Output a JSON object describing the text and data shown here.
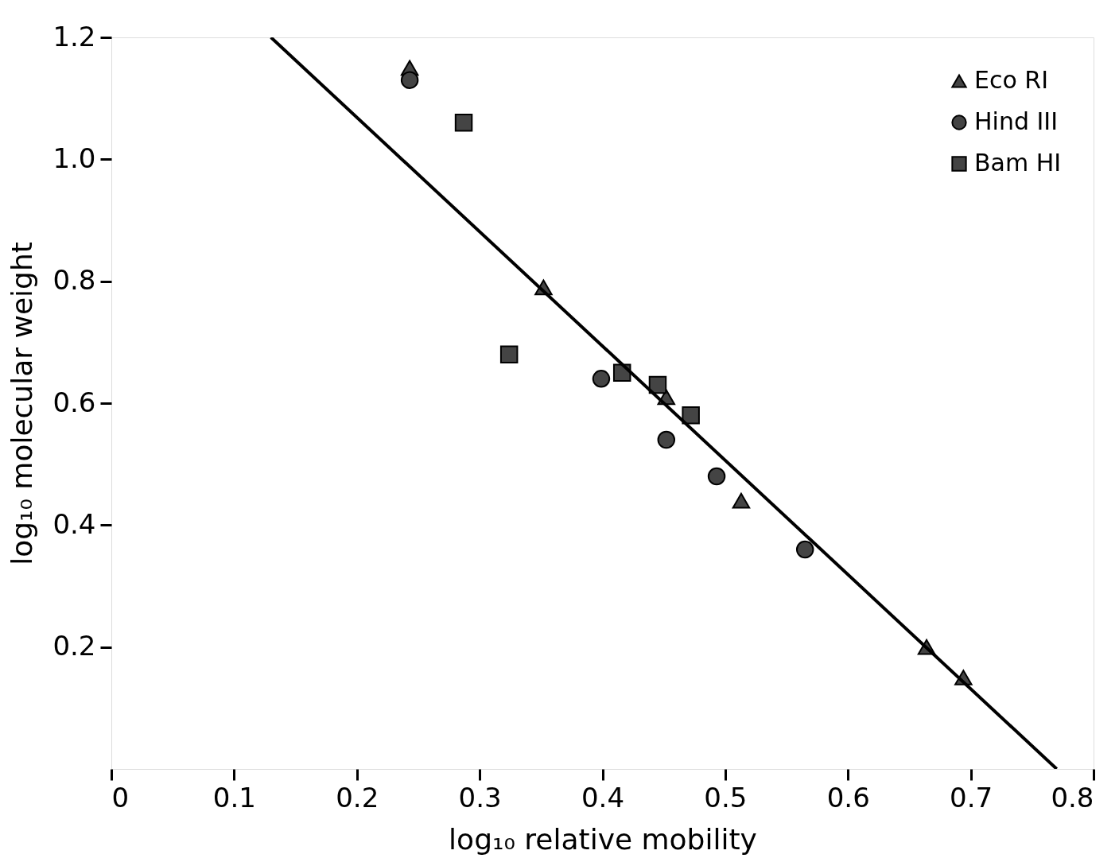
{
  "chart_data": {
    "type": "scatter",
    "xlabel": "log₁₀ relative mobility",
    "ylabel": "log₁₀ molecular weight",
    "xlim": [
      0,
      0.8
    ],
    "ylim": [
      0,
      1.2
    ],
    "xticks": [
      0,
      0.1,
      0.2,
      0.3,
      0.4,
      0.5,
      0.6,
      0.7,
      0.8
    ],
    "yticks": [
      0.2,
      0.4,
      0.6,
      0.8,
      {
        "value": 1.0,
        "label": "1.0"
      },
      1.2
    ],
    "grid": false,
    "legend": "top right",
    "series": [
      {
        "name": "Eco RI",
        "color": "#444444",
        "marker": "triangle",
        "x": [
          0.243,
          0.352,
          0.452,
          0.513,
          0.664,
          0.694
        ],
        "values": [
          1.15,
          0.79,
          0.61,
          0.44,
          0.2,
          0.15
        ]
      },
      {
        "name": "Hind III",
        "color": "#444444",
        "marker": "circle",
        "x": [
          0.243,
          0.399,
          0.452,
          0.493,
          0.565
        ],
        "values": [
          1.13,
          0.64,
          0.54,
          0.48,
          0.36
        ]
      },
      {
        "name": "Bam HI",
        "color": "#444444",
        "marker": "square",
        "x": [
          0.287,
          0.324,
          0.416,
          0.445,
          0.472
        ],
        "values": [
          1.06,
          0.68,
          0.65,
          0.63,
          0.58
        ]
      },
      {
        "type": "line",
        "color": "#000000",
        "x": [
          0.13,
          0.77
        ],
        "values": [
          1.2,
          0
        ]
      }
    ]
  }
}
